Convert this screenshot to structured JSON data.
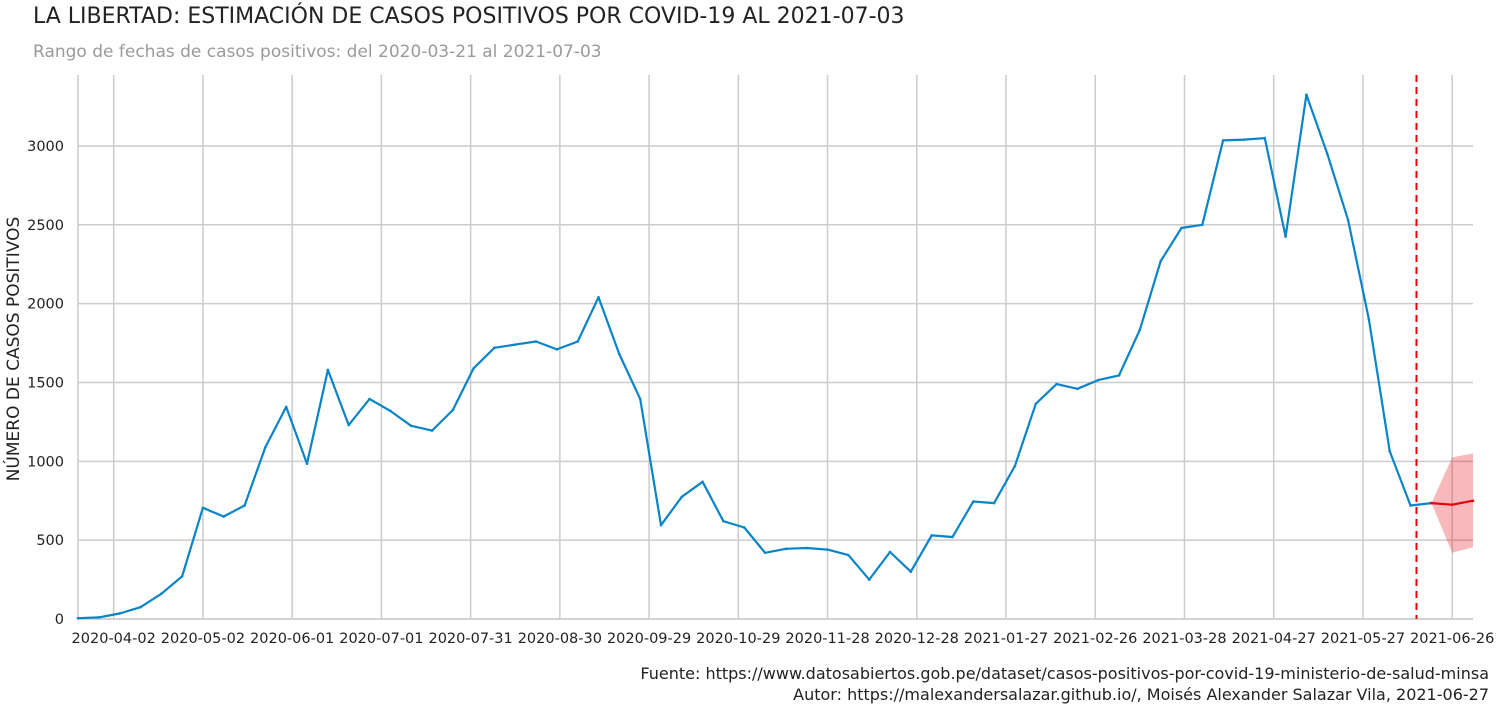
{
  "chart_data": {
    "type": "line",
    "title": "LA LIBERTAD: ESTIMACIÓN DE CASOS POSITIVOS POR COVID-19 AL 2021-07-03",
    "subtitle": "Rango de fechas de casos positivos: del 2020-03-21 al 2021-07-03",
    "xlabel": "",
    "ylabel": "NÚMERO DE CASOS POSITIVOS",
    "x_range": [
      "2020-03-21",
      "2021-07-03"
    ],
    "ylim": [
      0,
      3450
    ],
    "yticks": [
      0,
      500,
      1000,
      1500,
      2000,
      2500,
      3000
    ],
    "xticks": [
      "2020-04-02",
      "2020-05-02",
      "2020-06-01",
      "2020-07-01",
      "2020-07-31",
      "2020-08-30",
      "2020-09-29",
      "2020-10-29",
      "2020-11-28",
      "2020-12-28",
      "2021-01-27",
      "2021-02-26",
      "2021-03-28",
      "2021-04-27",
      "2021-05-27",
      "2021-06-26"
    ],
    "grid": true,
    "series": [
      {
        "color": "#0a84c8",
        "x": [
          "2020-03-21",
          "2020-03-28",
          "2020-04-04",
          "2020-04-11",
          "2020-04-18",
          "2020-04-25",
          "2020-05-02",
          "2020-05-09",
          "2020-05-16",
          "2020-05-23",
          "2020-05-30",
          "2020-06-06",
          "2020-06-13",
          "2020-06-20",
          "2020-06-27",
          "2020-07-04",
          "2020-07-11",
          "2020-07-18",
          "2020-07-25",
          "2020-08-01",
          "2020-08-08",
          "2020-08-15",
          "2020-08-22",
          "2020-08-29",
          "2020-09-05",
          "2020-09-12",
          "2020-09-19",
          "2020-09-26",
          "2020-10-03",
          "2020-10-10",
          "2020-10-17",
          "2020-10-24",
          "2020-10-31",
          "2020-11-07",
          "2020-11-14",
          "2020-11-21",
          "2020-11-28",
          "2020-12-05",
          "2020-12-12",
          "2020-12-19",
          "2020-12-26",
          "2021-01-02",
          "2021-01-09",
          "2021-01-16",
          "2021-01-23",
          "2021-01-30",
          "2021-02-06",
          "2021-02-13",
          "2021-02-20",
          "2021-02-27",
          "2021-03-06",
          "2021-03-13",
          "2021-03-20",
          "2021-03-27",
          "2021-04-03",
          "2021-04-10",
          "2021-04-17",
          "2021-04-24",
          "2021-05-01",
          "2021-05-08",
          "2021-05-15",
          "2021-05-22",
          "2021-05-29",
          "2021-06-05",
          "2021-06-12",
          "2021-06-19"
        ],
        "y": [
          5,
          10,
          35,
          75,
          160,
          270,
          705,
          650,
          720,
          1090,
          1345,
          985,
          1580,
          1230,
          1395,
          1320,
          1225,
          1195,
          1325,
          1590,
          1720,
          1740,
          1760,
          1710,
          1760,
          2040,
          1680,
          1395,
          595,
          775,
          870,
          620,
          580,
          420,
          445,
          450,
          440,
          405,
          250,
          425,
          300,
          530,
          520,
          745,
          735,
          970,
          1365,
          1490,
          1460,
          1515,
          1545,
          1835,
          2270,
          2480,
          2500,
          3035,
          3040,
          3050,
          2425,
          3325,
          2950,
          2530,
          1900,
          1065,
          720,
          735
        ]
      },
      {
        "color": "#e8000b",
        "x": [
          "2021-06-19",
          "2021-06-26",
          "2021-07-03"
        ],
        "y": [
          735,
          725,
          750
        ],
        "lower": [
          735,
          420,
          455
        ],
        "upper": [
          735,
          1025,
          1050
        ]
      }
    ],
    "marker_line": {
      "x": "2021-06-14",
      "color": "#e8000b",
      "style": "dashed"
    }
  },
  "footer": {
    "source": "Fuente: https://www.datosabiertos.gob.pe/dataset/casos-positivos-por-covid-19-ministerio-de-salud-minsa",
    "author": "Autor: https://malexandersalazar.github.io/, Moisés Alexander Salazar Vila, 2021-06-27"
  }
}
